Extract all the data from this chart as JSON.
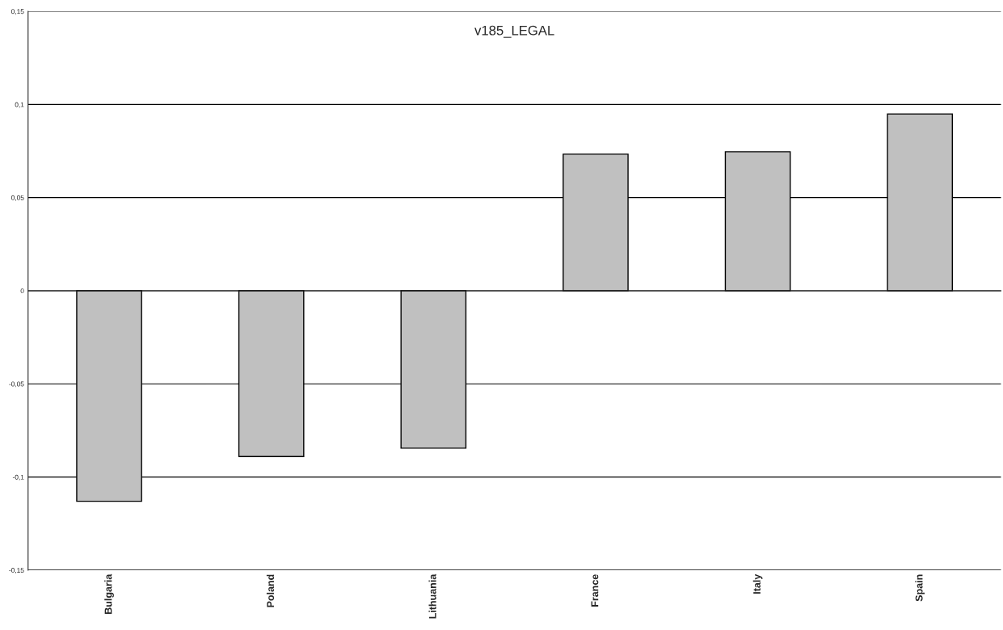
{
  "chart_data": {
    "type": "bar",
    "title": "v185_LEGAL",
    "categories": [
      "Bulgaria",
      "Poland",
      "Lithuania",
      "France",
      "Italy",
      "Spain"
    ],
    "values": [
      -0.113,
      -0.089,
      -0.0845,
      0.0733,
      0.0746,
      0.0949
    ],
    "color": "#c0c0c0",
    "ylim": [
      -0.15,
      0.15
    ],
    "yticks": [
      {
        "value": -0.15,
        "label": "-0,15"
      },
      {
        "value": -0.1,
        "label": "-0,1"
      },
      {
        "value": -0.05,
        "label": "-0,05"
      },
      0,
      {
        "value": 0.05,
        "label": "0,05"
      },
      {
        "value": 0.1,
        "label": "0,1"
      },
      {
        "value": 0.15,
        "label": "0,15"
      }
    ],
    "grid": "y",
    "legend": false
  }
}
